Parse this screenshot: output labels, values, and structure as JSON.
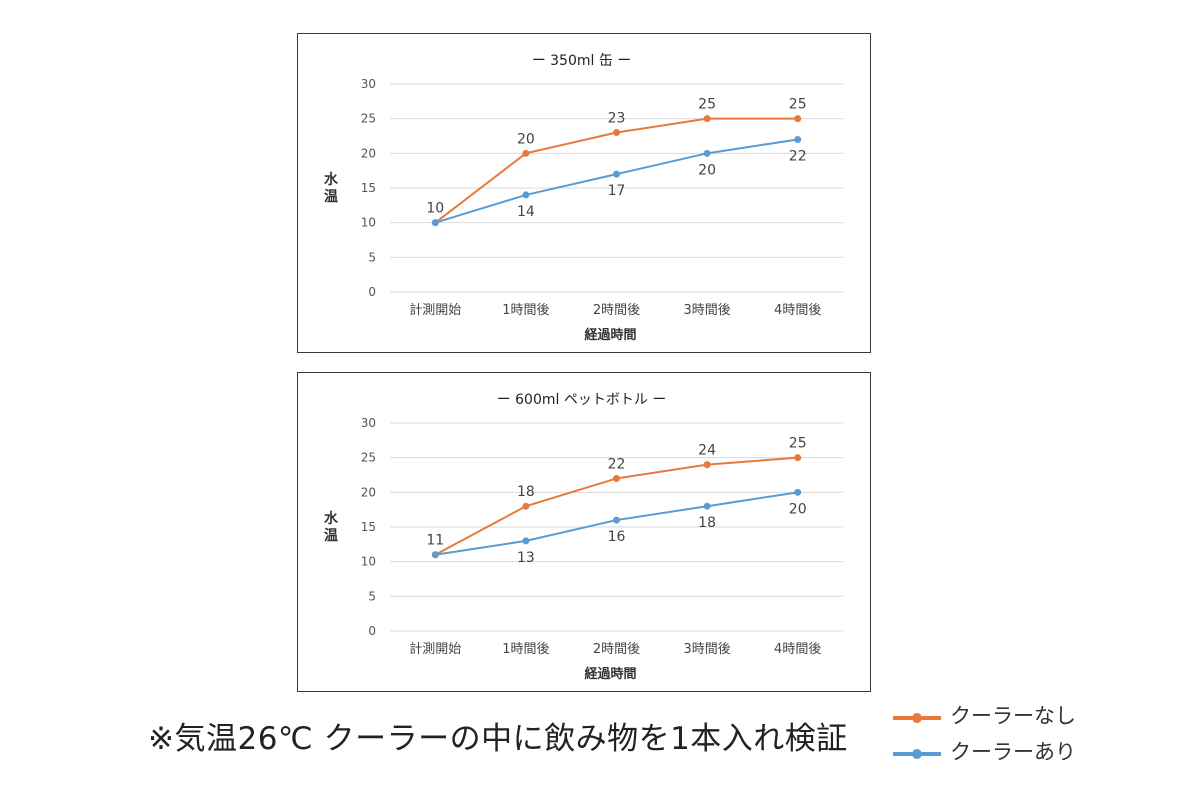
{
  "colors": {
    "no_cooler": "#e8793a",
    "with_cooler": "#5b9bd5",
    "grid": "#d9d9d9",
    "border": "#3a3a3a"
  },
  "chart_data": [
    {
      "type": "line",
      "title": "ー 350ml 缶 ー",
      "xlabel": "経過時間",
      "ylabel": "水温",
      "categories": [
        "計測開始",
        "1時間後",
        "2時間後",
        "3時間後",
        "4時間後"
      ],
      "yticks": [
        "0",
        "5",
        "10",
        "15",
        "20",
        "25",
        "30"
      ],
      "ylim": [
        0,
        30
      ],
      "grid": true,
      "series": [
        {
          "name": "クーラーなし",
          "color": "#e8793a",
          "values": [
            10,
            20,
            23,
            25,
            25
          ],
          "labels": [
            "10",
            "20",
            "23",
            "25",
            "25"
          ]
        },
        {
          "name": "クーラーあり",
          "color": "#5b9bd5",
          "values": [
            10,
            14,
            17,
            20,
            22
          ],
          "labels": [
            "",
            "14",
            "17",
            "20",
            "22"
          ]
        }
      ]
    },
    {
      "type": "line",
      "title": "ー 600ml ペットボトル ー",
      "xlabel": "経過時間",
      "ylabel": "水温",
      "categories": [
        "計測開始",
        "1時間後",
        "2時間後",
        "3時間後",
        "4時間後"
      ],
      "yticks": [
        "0",
        "5",
        "10",
        "15",
        "20",
        "25",
        "30"
      ],
      "ylim": [
        0,
        30
      ],
      "grid": true,
      "series": [
        {
          "name": "クーラーなし",
          "color": "#e8793a",
          "values": [
            11,
            18,
            22,
            24,
            25
          ],
          "labels": [
            "11",
            "18",
            "22",
            "24",
            "25"
          ]
        },
        {
          "name": "クーラーあり",
          "color": "#5b9bd5",
          "values": [
            11,
            13,
            16,
            18,
            20
          ],
          "labels": [
            "",
            "13",
            "16",
            "18",
            "20"
          ]
        }
      ]
    }
  ],
  "footnote": "※気温26℃ クーラーの中に飲み物を1本入れ検証",
  "legend": [
    {
      "label": "クーラーなし",
      "color": "#e8793a"
    },
    {
      "label": "クーラーあり",
      "color": "#5b9bd5"
    }
  ]
}
